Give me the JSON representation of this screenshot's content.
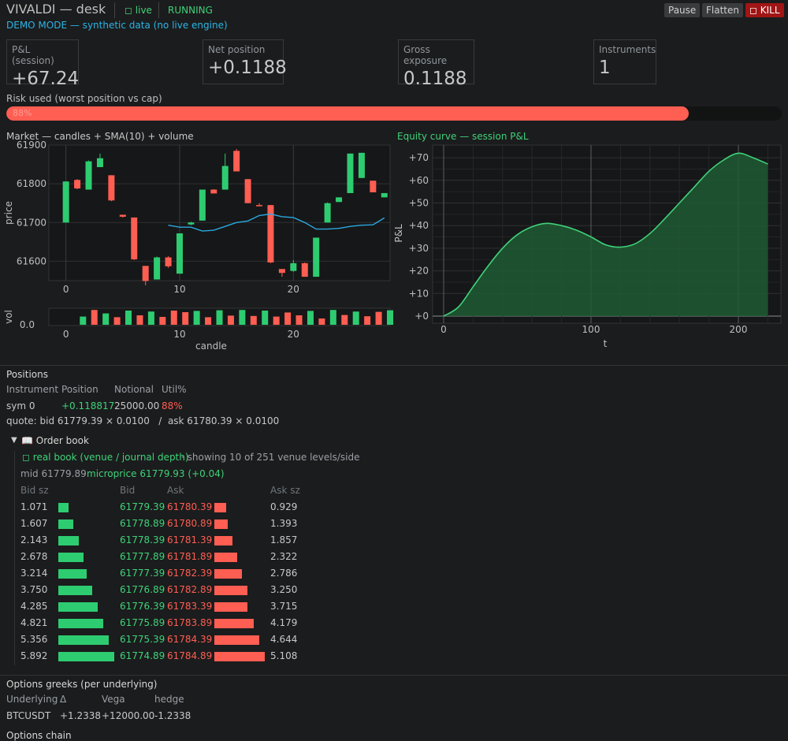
{
  "header": {
    "title": "VIVALDI — desk",
    "live": "◻ live",
    "status": "RUNNING",
    "demo": "DEMO MODE — synthetic data (no live engine)",
    "pause": "Pause",
    "flatten": "Flatten",
    "kill": "◻ KILL"
  },
  "metrics": [
    {
      "label": "P&L (session)",
      "value": "+67.24"
    },
    {
      "label": "Net position",
      "value": "+0.1188"
    },
    {
      "label": "Gross exposure",
      "value": "0.1188"
    },
    {
      "label": "Instruments",
      "value": "1"
    }
  ],
  "risk": {
    "label": "Risk used (worst position vs cap)",
    "text": "88%",
    "fraction": 0.88
  },
  "market_chart": {
    "title": "Market — candles + SMA(10) + volume",
    "ylabel": "price",
    "xlabel": "candle",
    "vol_label": "vol",
    "vol_tick": "0.0",
    "yticks": [
      "61900",
      "61800",
      "61700",
      "61600"
    ],
    "xticks": [
      "0",
      "10",
      "20"
    ]
  },
  "equity_chart": {
    "title": "Equity curve — session P&L",
    "ylabel": "P&L",
    "xlabel": "t",
    "yticks": [
      "+70",
      "+60",
      "+50",
      "+40",
      "+30",
      "+20",
      "+10",
      "+0"
    ],
    "xticks": [
      "0",
      "100",
      "200"
    ]
  },
  "chart_data": [
    {
      "type": "candlestick",
      "title": "Market — candles + SMA(10) + volume",
      "ylabel": "price",
      "xlabel": "candle",
      "ylim": [
        61550,
        61900
      ],
      "xlim": [
        -1.5,
        28.5
      ],
      "candles": [
        {
          "o": 61700,
          "c": 61806,
          "h": 61806,
          "l": 61700
        },
        {
          "o": 61810,
          "c": 61788,
          "h": 61812,
          "l": 61786
        },
        {
          "o": 61785,
          "c": 61858,
          "h": 61860,
          "l": 61785
        },
        {
          "o": 61843,
          "c": 61866,
          "h": 61878,
          "l": 61843
        },
        {
          "o": 61822,
          "c": 61757,
          "h": 61822,
          "l": 61755
        },
        {
          "o": 61720,
          "c": 61715,
          "h": 61720,
          "l": 61713
        },
        {
          "o": 61713,
          "c": 61605,
          "h": 61713,
          "l": 61603
        },
        {
          "o": 61588,
          "c": 61549,
          "h": 61588,
          "l": 61538
        },
        {
          "o": 61553,
          "c": 61610,
          "h": 61612,
          "l": 61553
        },
        {
          "o": 61610,
          "c": 61587,
          "h": 61613,
          "l": 61583
        },
        {
          "o": 61568,
          "c": 61672,
          "h": 61672,
          "l": 61568
        },
        {
          "o": 61695,
          "c": 61700,
          "h": 61702,
          "l": 61693
        },
        {
          "o": 61705,
          "c": 61785,
          "h": 61785,
          "l": 61705
        },
        {
          "o": 61785,
          "c": 61775,
          "h": 61786,
          "l": 61775
        },
        {
          "o": 61785,
          "c": 61846,
          "h": 61878,
          "l": 61785
        },
        {
          "o": 61885,
          "c": 61832,
          "h": 61890,
          "l": 61832
        },
        {
          "o": 61812,
          "c": 61750,
          "h": 61812,
          "l": 61750
        },
        {
          "o": 61745,
          "c": 61743,
          "h": 61750,
          "l": 61742
        },
        {
          "o": 61745,
          "c": 61597,
          "h": 61745,
          "l": 61595
        },
        {
          "o": 61580,
          "c": 61570,
          "h": 61580,
          "l": 61560
        },
        {
          "o": 61575,
          "c": 61595,
          "h": 61603,
          "l": 61573
        },
        {
          "o": 61595,
          "c": 61560,
          "h": 61597,
          "l": 61560
        },
        {
          "o": 61560,
          "c": 61661,
          "h": 61661,
          "l": 61560
        },
        {
          "o": 61700,
          "c": 61750,
          "h": 61752,
          "l": 61700
        },
        {
          "o": 61753,
          "c": 61765,
          "h": 61765,
          "l": 61753
        },
        {
          "o": 61776,
          "c": 61878,
          "h": 61878,
          "l": 61776
        },
        {
          "o": 61815,
          "c": 61880,
          "h": 61880,
          "l": 61815
        },
        {
          "o": 61808,
          "c": 61778,
          "h": 61808,
          "l": 61778
        },
        {
          "o": 61765,
          "c": 61776,
          "h": 61776,
          "l": 61765
        }
      ],
      "sma": [
        [
          9,
          61693
        ],
        [
          10,
          61688
        ],
        [
          11,
          61688
        ],
        [
          12,
          61678
        ],
        [
          13,
          61680
        ],
        [
          14,
          61690
        ],
        [
          15,
          61700
        ],
        [
          16,
          61704
        ],
        [
          17,
          61718
        ],
        [
          18,
          61722
        ],
        [
          19,
          61715
        ],
        [
          20,
          61713
        ],
        [
          21,
          61700
        ],
        [
          22,
          61683
        ],
        [
          23,
          61683
        ],
        [
          24,
          61685
        ],
        [
          25,
          61690
        ],
        [
          26,
          61693
        ],
        [
          27,
          61694
        ],
        [
          28,
          61712
        ]
      ],
      "volume_up": [
        true,
        false,
        true,
        false,
        true,
        false,
        true,
        false,
        false,
        false,
        true,
        false,
        true,
        false,
        true,
        false,
        true,
        false,
        false,
        false,
        true,
        false,
        true,
        false,
        true,
        false,
        false,
        true,
        true
      ],
      "volume_heights": [
        0.52,
        0.94,
        0.72,
        0.48,
        0.9,
        0.6,
        0.84,
        0.5,
        0.9,
        0.8,
        0.88,
        0.48,
        0.92,
        0.58,
        0.94,
        0.56,
        0.9,
        0.52,
        0.78,
        0.6,
        0.88,
        0.4,
        0.94,
        0.62,
        0.84,
        0.54,
        0.82,
        0.92,
        0.2
      ]
    },
    {
      "type": "area",
      "title": "Equity curve — session P&L",
      "xlabel": "t",
      "ylabel": "P&L",
      "xlim": [
        0,
        230
      ],
      "ylim": [
        0,
        72
      ],
      "points": [
        [
          0,
          0
        ],
        [
          10,
          4
        ],
        [
          20,
          13
        ],
        [
          30,
          22
        ],
        [
          40,
          30
        ],
        [
          50,
          36
        ],
        [
          60,
          39.5
        ],
        [
          70,
          41
        ],
        [
          80,
          40
        ],
        [
          90,
          38
        ],
        [
          100,
          35
        ],
        [
          110,
          31.5
        ],
        [
          120,
          30.5
        ],
        [
          130,
          32
        ],
        [
          140,
          36.5
        ],
        [
          150,
          43
        ],
        [
          160,
          50
        ],
        [
          170,
          57
        ],
        [
          180,
          64
        ],
        [
          190,
          69
        ],
        [
          200,
          72
        ],
        [
          210,
          70
        ],
        [
          220,
          67.24
        ]
      ]
    }
  ],
  "positions": {
    "title": "Positions",
    "headers": [
      "Instrument",
      "Position",
      "Notional",
      "Util%"
    ],
    "row": {
      "instrument": "sym 0",
      "position": "+0.118817",
      "notional": "25000.00",
      "util": "88%"
    },
    "quote": "quote: bid 61779.39 × 0.0100   /  ask 61780.39 × 0.0100"
  },
  "order_book": {
    "title": "📖 Order book",
    "source": "◻ real book (venue / journal depth)",
    "showing": "· showing 10 of 251 venue levels/side",
    "mid": "mid 61779.89",
    "micro": "microprice 61779.93 (+0.04)",
    "headers": [
      "Bid sz",
      "Bid",
      "Ask",
      "Ask sz"
    ],
    "levels": [
      {
        "bid_sz": "1.071",
        "bid": "61779.39",
        "ask": "61780.39",
        "ask_sz": "0.929",
        "bid_frac": 0.18,
        "ask_frac": 0.23
      },
      {
        "bid_sz": "1.607",
        "bid": "61778.89",
        "ask": "61780.89",
        "ask_sz": "1.393",
        "bid_frac": 0.27,
        "ask_frac": 0.26
      },
      {
        "bid_sz": "2.143",
        "bid": "61778.39",
        "ask": "61781.39",
        "ask_sz": "1.857",
        "bid_frac": 0.36,
        "ask_frac": 0.36
      },
      {
        "bid_sz": "2.678",
        "bid": "61777.89",
        "ask": "61781.89",
        "ask_sz": "2.322",
        "bid_frac": 0.45,
        "ask_frac": 0.45
      },
      {
        "bid_sz": "3.214",
        "bid": "61777.39",
        "ask": "61782.39",
        "ask_sz": "2.786",
        "bid_frac": 0.51,
        "ask_frac": 0.55
      },
      {
        "bid_sz": "3.750",
        "bid": "61776.89",
        "ask": "61782.89",
        "ask_sz": "3.250",
        "bid_frac": 0.6,
        "ask_frac": 0.66
      },
      {
        "bid_sz": "4.285",
        "bid": "61776.39",
        "ask": "61783.39",
        "ask_sz": "3.715",
        "bid_frac": 0.7,
        "ask_frac": 0.66
      },
      {
        "bid_sz": "4.821",
        "bid": "61775.89",
        "ask": "61783.89",
        "ask_sz": "4.179",
        "bid_frac": 0.8,
        "ask_frac": 0.78
      },
      {
        "bid_sz": "5.356",
        "bid": "61775.39",
        "ask": "61784.39",
        "ask_sz": "4.644",
        "bid_frac": 0.9,
        "ask_frac": 0.89
      },
      {
        "bid_sz": "5.892",
        "bid": "61774.89",
        "ask": "61784.89",
        "ask_sz": "5.108",
        "bid_frac": 1.0,
        "ask_frac": 1.0
      }
    ]
  },
  "greeks": {
    "title": "Options greeks (per underlying)",
    "headers": [
      "Underlying",
      "Δ",
      "Vega",
      "hedge"
    ],
    "row": {
      "underlying": "BTCUSDT",
      "delta": "+1.2338",
      "vega": "+12000.00",
      "hedge": "-1.2338"
    }
  },
  "options_chain": {
    "title": "Options chain"
  },
  "colors": {
    "up": "#2ecc71",
    "down": "#ff5e52",
    "sma": "#2aa8e0",
    "equity": "#3fd27a",
    "bg": "#1b1c1d"
  }
}
